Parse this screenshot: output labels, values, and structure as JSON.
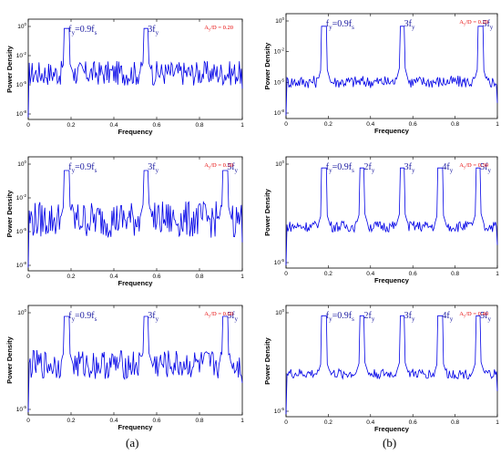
{
  "captions": [
    "(a)",
    "(b)"
  ],
  "panel_labels": {
    "fy_harmonic": "f",
    "fy_sub": "y",
    "fs_sub": "s",
    "eq_prefix": "=0.9f"
  },
  "chart_data": [
    {
      "type": "line",
      "panel": "a1",
      "xlabel": "Frequency",
      "ylabel": "Power Density",
      "xlim": [
        0,
        1
      ],
      "x_ticks": [
        "0",
        "0.2",
        "0.4",
        "0.6",
        "0.8",
        "1"
      ],
      "y_ticks": [
        "10^0",
        "10^-2",
        "10^-5",
        "10^-8"
      ],
      "y_log_range": [
        -6,
        7
      ],
      "ratio_label": "A_y/D = 0.20",
      "annotations": [
        {
          "label": "fy=0.9fs",
          "x": 0.18
        },
        {
          "label": "3fy",
          "x": 0.55
        }
      ],
      "series_color": "#0000e6",
      "x": [
        0.0,
        0.18,
        0.23,
        0.36,
        0.55,
        0.6,
        0.8,
        0.9,
        1.0
      ],
      "y_log": [
        -2.0,
        5.0,
        2.0,
        -2.5,
        3.0,
        -1.0,
        -3.0,
        -2.0,
        -4.0
      ]
    },
    {
      "type": "line",
      "panel": "b1",
      "xlabel": "Frequency",
      "ylabel": "Power Density",
      "xlim": [
        0,
        1
      ],
      "x_ticks": [
        "0",
        "0.2",
        "0.4",
        "0.6",
        "0.8",
        "1"
      ],
      "y_ticks": [
        "10^0",
        "10^-2",
        "10^-5",
        "10^-8"
      ],
      "y_log_range": [
        -8,
        2
      ],
      "ratio_label": "A_y/D = 0.20",
      "annotations": [
        {
          "label": "fy=0.9fs",
          "x": 0.18
        },
        {
          "label": "3fy",
          "x": 0.55
        },
        {
          "label": "5fy",
          "x": 0.92
        }
      ],
      "series_color": "#0000e6",
      "x": [
        0.0,
        0.18,
        0.27,
        0.36,
        0.55,
        0.73,
        0.92,
        1.0
      ],
      "y_log": [
        -3.0,
        1.0,
        -4.0,
        -2.0,
        -0.5,
        -5.0,
        -2.0,
        -6.0
      ]
    },
    {
      "type": "line",
      "panel": "a2",
      "xlabel": "Frequency",
      "ylabel": "Power Density",
      "xlim": [
        0,
        1
      ],
      "x_ticks": [
        "0",
        "0.2",
        "0.4",
        "0.6",
        "0.8",
        "1"
      ],
      "y_ticks": [
        "10^0",
        "10^-2",
        "10^-5",
        "10^-8"
      ],
      "y_log_range": [
        -8,
        2
      ],
      "ratio_label": "A_y/D = 0.30",
      "annotations": [
        {
          "label": "fy=0.9fs",
          "x": 0.18
        },
        {
          "label": "3fy",
          "x": 0.55
        },
        {
          "label": "5fy",
          "x": 0.92
        }
      ],
      "series_color": "#0000e6",
      "x": [
        0.0,
        0.18,
        0.27,
        0.55,
        0.73,
        0.92,
        1.0
      ],
      "y_log": [
        -3.0,
        1.0,
        -2.0,
        -1.0,
        -4.5,
        -3.5,
        -6.0
      ]
    },
    {
      "type": "line",
      "panel": "b2",
      "xlabel": "Frequency",
      "ylabel": "Power Density",
      "xlim": [
        0,
        1
      ],
      "x_ticks": [
        "0",
        "0.2",
        "0.4",
        "0.6",
        "0.8",
        "1"
      ],
      "y_ticks": [
        "10^0",
        "10^-5"
      ],
      "y_log_range": [
        -10,
        2
      ],
      "ratio_label": "A_y/D = 0.30",
      "annotations": [
        {
          "label": "fy=0.9fs",
          "x": 0.18
        },
        {
          "label": "2fy",
          "x": 0.36
        },
        {
          "label": "3fy",
          "x": 0.55
        },
        {
          "label": "4fy",
          "x": 0.73
        },
        {
          "label": "5fy",
          "x": 0.91
        }
      ],
      "series_color": "#0000e6",
      "x": [
        0.0,
        0.18,
        0.36,
        0.55,
        0.73,
        0.91,
        1.0
      ],
      "y_log": [
        -4.0,
        1.0,
        -2.0,
        -0.5,
        -4.0,
        -3.0,
        -8.0
      ]
    },
    {
      "type": "line",
      "panel": "a3",
      "xlabel": "Frequency",
      "ylabel": "Power Density",
      "xlim": [
        0,
        1
      ],
      "x_ticks": [
        "0",
        "0.2",
        "0.4",
        "0.6",
        "0.8",
        "1"
      ],
      "y_ticks": [
        "10^0",
        "10^-5"
      ],
      "y_log_range": [
        -10,
        2
      ],
      "ratio_label": "A_y/D = 0.60",
      "annotations": [
        {
          "label": "fy=0.9fs",
          "x": 0.18
        },
        {
          "label": "3fy",
          "x": 0.55
        },
        {
          "label": "5fy",
          "x": 0.92
        }
      ],
      "series_color": "#0000e6",
      "x": [
        0.0,
        0.18,
        0.36,
        0.55,
        0.73,
        0.92,
        1.0
      ],
      "y_log": [
        -4.0,
        1.0,
        -3.0,
        -1.0,
        -4.0,
        -2.0,
        -7.0
      ]
    },
    {
      "type": "line",
      "panel": "b3",
      "xlabel": "Frequency",
      "ylabel": "Power Density",
      "xlim": [
        0,
        1
      ],
      "x_ticks": [
        "0",
        "0.2",
        "0.4",
        "0.6",
        "0.8",
        "1"
      ],
      "y_ticks": [
        "10^0",
        "10^-5"
      ],
      "y_log_range": [
        -11,
        2
      ],
      "ratio_label": "A_y/D = 0.40",
      "annotations": [
        {
          "label": "fy=0.9fs",
          "x": 0.18
        },
        {
          "label": "2fy",
          "x": 0.36
        },
        {
          "label": "3fy",
          "x": 0.55
        },
        {
          "label": "4fy",
          "x": 0.73
        },
        {
          "label": "5fy",
          "x": 0.91
        }
      ],
      "series_color": "#0000e6",
      "x": [
        0.0,
        0.18,
        0.36,
        0.55,
        0.73,
        0.91,
        1.0
      ],
      "y_log": [
        -6.0,
        1.0,
        -1.0,
        -0.5,
        -4.5,
        -3.0,
        -9.0
      ]
    }
  ]
}
